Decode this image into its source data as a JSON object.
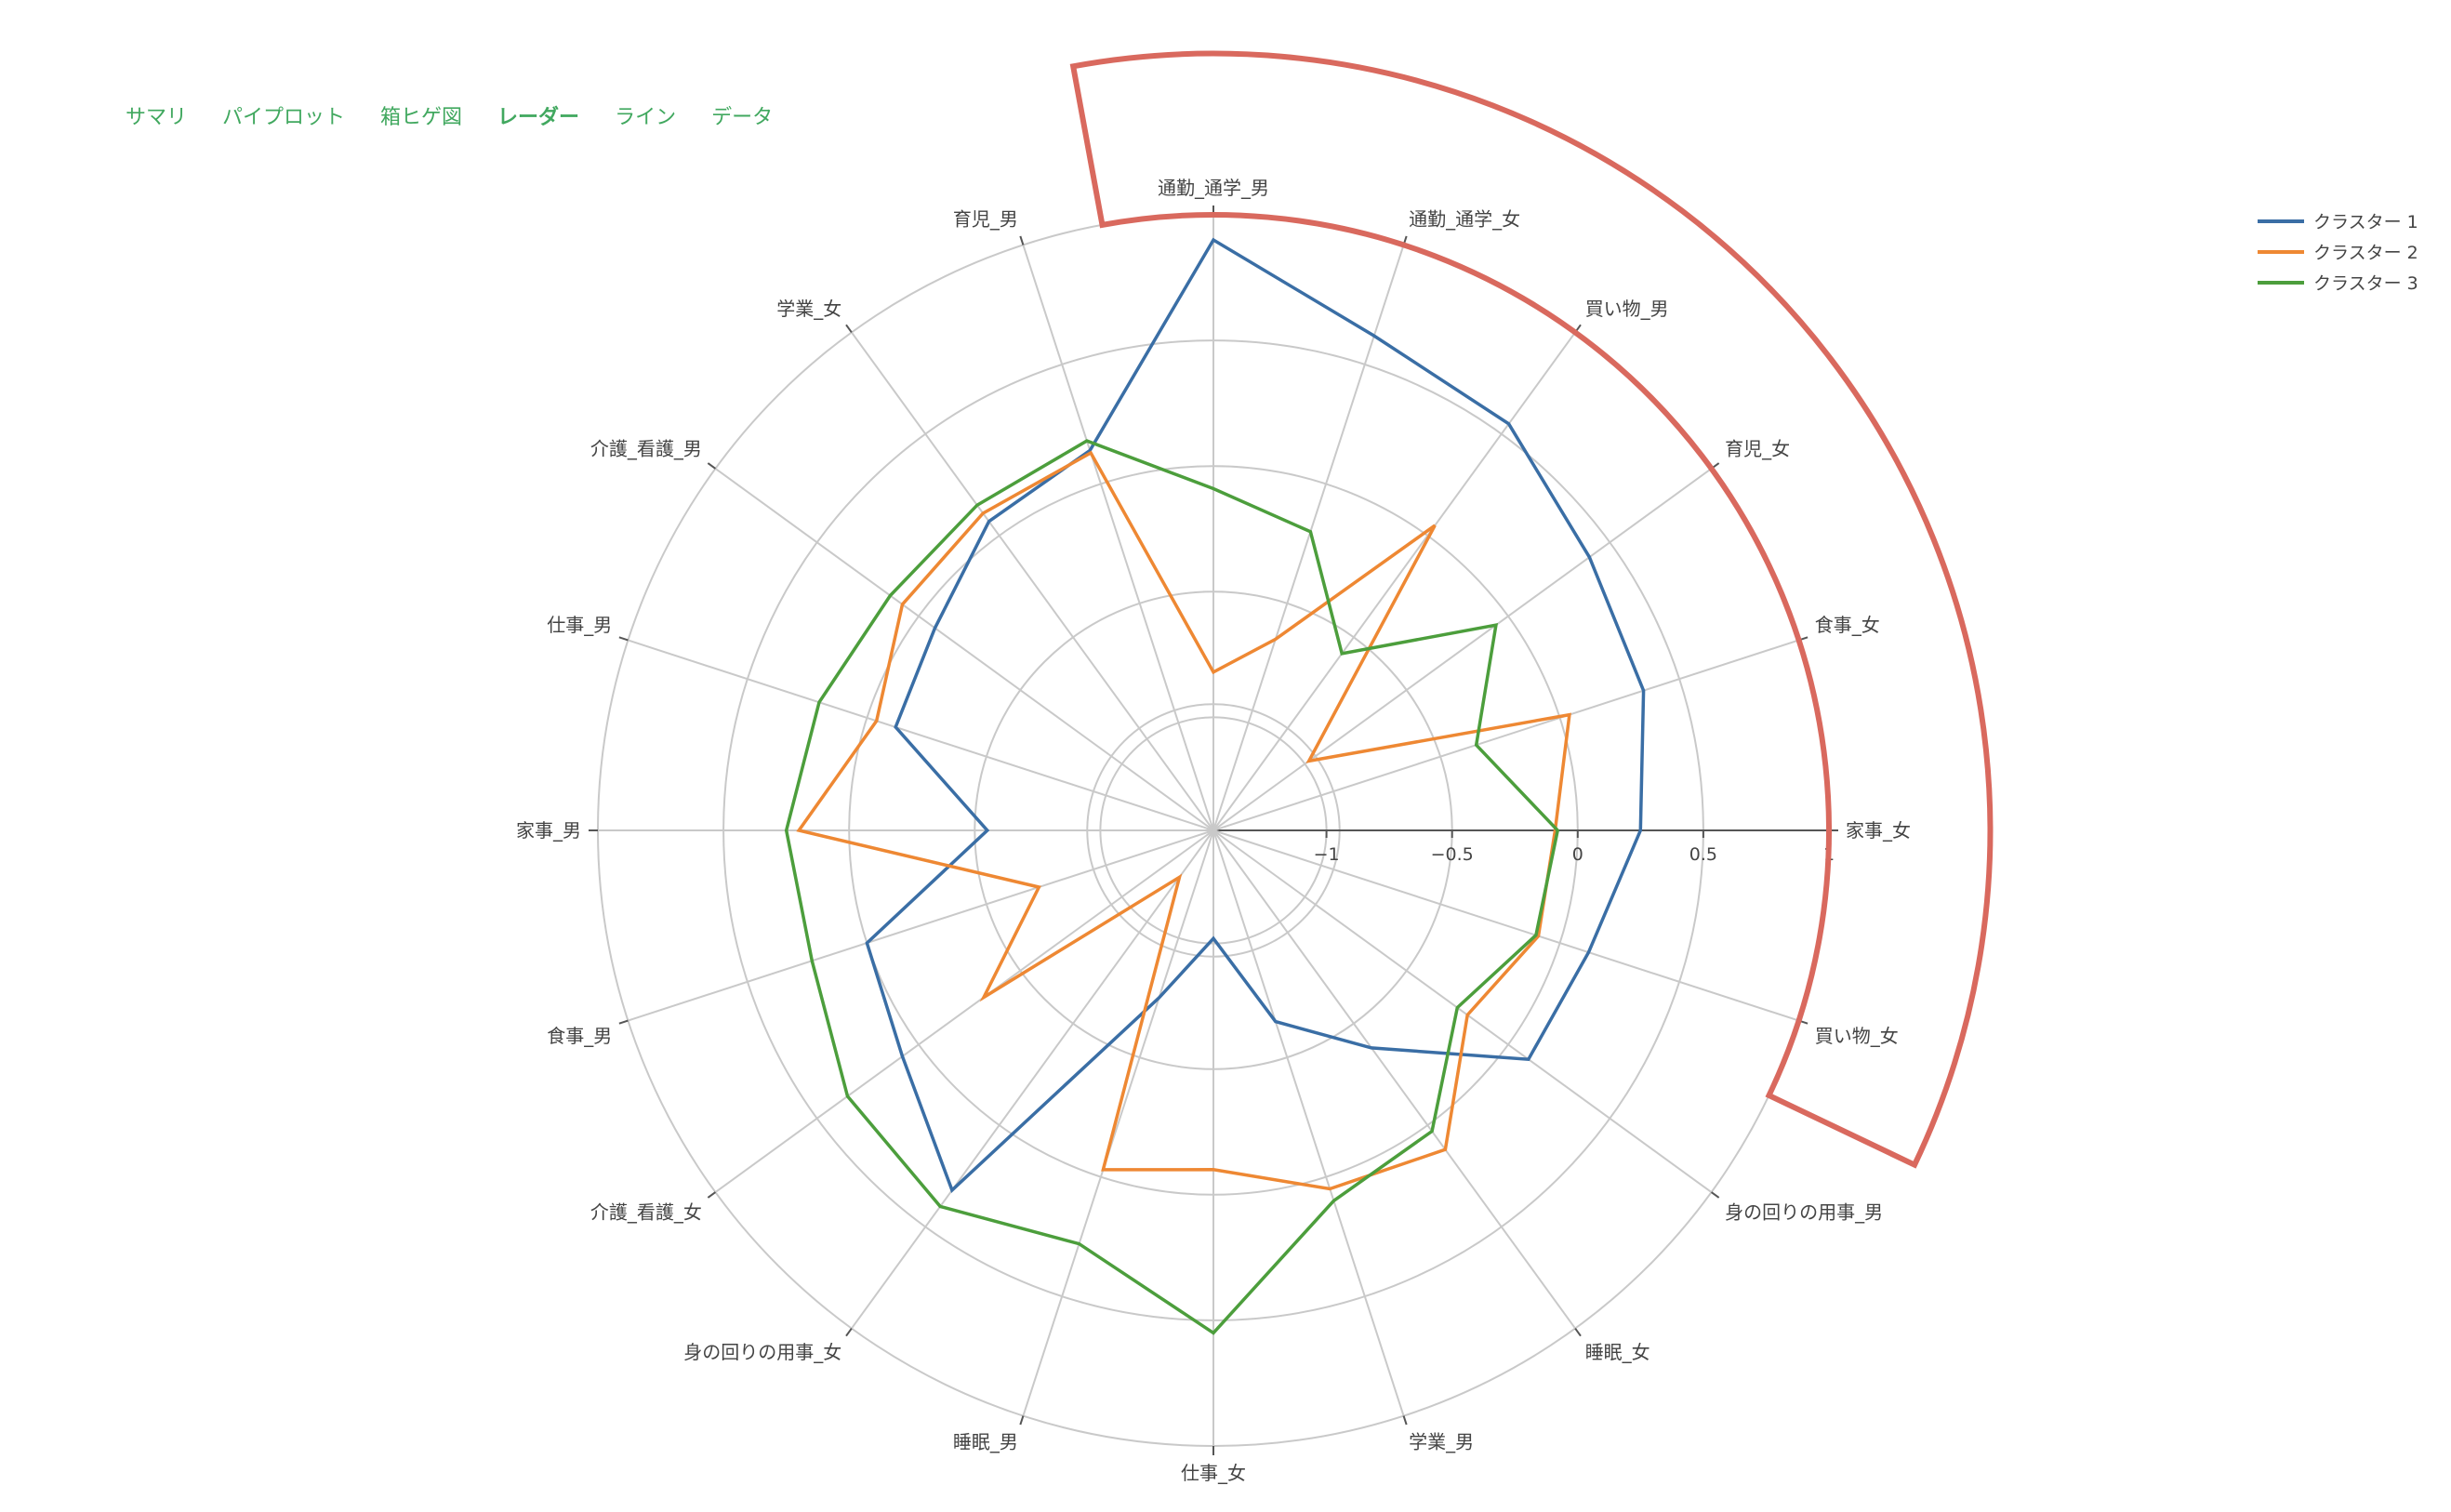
{
  "tabs": [
    {
      "label": "サマリ",
      "active": false
    },
    {
      "label": "パイプロット",
      "active": false
    },
    {
      "label": "箱ヒゲ図",
      "active": false
    },
    {
      "label": "レーダー",
      "active": true
    },
    {
      "label": "ライン",
      "active": false
    },
    {
      "label": "データ",
      "active": false
    }
  ],
  "chart_data": {
    "type": "radar",
    "axes": [
      "家事_女",
      "食事_女",
      "育児_女",
      "買い物_男",
      "通勤_通学_女",
      "通勤_通学_男",
      "育児_男",
      "学業_女",
      "介護_看護_男",
      "仕事_男",
      "家事_男",
      "食事_男",
      "介護_看護_女",
      "身の回りの用事_女",
      "睡眠_男",
      "仕事_女",
      "学業_男",
      "睡眠_女",
      "身の回りの用事_男",
      "買い物_女"
    ],
    "radial_ticks": [
      -1,
      -0.5,
      0,
      0.5,
      1
    ],
    "rlim": [
      -1.45,
      1
    ],
    "series": [
      {
        "name": "クラスター 1",
        "color": "#3a6ea5",
        "values": [
          0.25,
          0.35,
          0.4,
          0.55,
          0.62,
          0.9,
          0.14,
          0.07,
          -0.08,
          -0.12,
          -0.55,
          0.0,
          0.08,
          0.32,
          -0.75,
          -1.02,
          -0.65,
          -0.38,
          0.1,
          0.12
        ]
      },
      {
        "name": "クラスター 2",
        "color": "#ee8833",
        "values": [
          -0.09,
          0.04,
          -0.98,
          0.05,
          -0.65,
          -0.82,
          0.13,
          0.11,
          0.08,
          -0.04,
          0.2,
          -0.72,
          -0.32,
          -1.22,
          -0.03,
          -0.1,
          0.05,
          0.12,
          -0.2,
          -0.09
        ]
      },
      {
        "name": "クラスター 3",
        "color": "#4c9e3c",
        "values": [
          -0.08,
          -0.35,
          -0.06,
          -0.58,
          -0.2,
          -0.09,
          0.18,
          0.15,
          0.14,
          0.2,
          0.25,
          0.23,
          0.35,
          0.4,
          0.28,
          0.55,
          0.1,
          0.03,
          -0.25,
          -0.1
        ]
      }
    ]
  },
  "legend": {
    "items": [
      {
        "name": "クラスター 1",
        "color": "#3a6ea5"
      },
      {
        "name": "クラスター 2",
        "color": "#ee8833"
      },
      {
        "name": "クラスター 3",
        "color": "#4c9e3c"
      }
    ]
  },
  "highlight_color": "#d9695e"
}
